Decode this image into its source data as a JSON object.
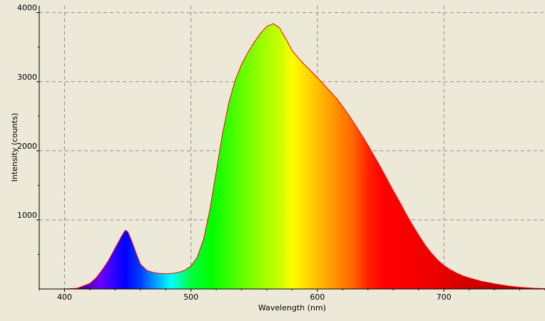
{
  "chart_data": {
    "type": "area",
    "xlabel": "Wavelength (nm)",
    "ylabel": "Intensity (counts)",
    "x_ticks": [
      400,
      500,
      600,
      700
    ],
    "y_ticks": [
      1000,
      2000,
      3000,
      4000
    ],
    "xlim": [
      380,
      780
    ],
    "ylim": [
      0,
      4100
    ],
    "grid": true,
    "fill": "visible-spectrum gradient by wavelength",
    "line_color": "#ff0000",
    "points": [
      [
        380,
        0
      ],
      [
        400,
        0
      ],
      [
        410,
        10
      ],
      [
        420,
        80
      ],
      [
        425,
        160
      ],
      [
        430,
        280
      ],
      [
        435,
        420
      ],
      [
        440,
        590
      ],
      [
        445,
        760
      ],
      [
        448,
        850
      ],
      [
        450,
        830
      ],
      [
        453,
        700
      ],
      [
        457,
        500
      ],
      [
        460,
        360
      ],
      [
        465,
        270
      ],
      [
        470,
        240
      ],
      [
        475,
        225
      ],
      [
        480,
        220
      ],
      [
        485,
        225
      ],
      [
        490,
        240
      ],
      [
        495,
        270
      ],
      [
        500,
        330
      ],
      [
        505,
        460
      ],
      [
        510,
        720
      ],
      [
        515,
        1150
      ],
      [
        520,
        1700
      ],
      [
        525,
        2250
      ],
      [
        530,
        2700
      ],
      [
        535,
        3020
      ],
      [
        540,
        3250
      ],
      [
        545,
        3420
      ],
      [
        550,
        3570
      ],
      [
        555,
        3700
      ],
      [
        560,
        3800
      ],
      [
        565,
        3840
      ],
      [
        570,
        3780
      ],
      [
        575,
        3620
      ],
      [
        580,
        3450
      ],
      [
        585,
        3340
      ],
      [
        590,
        3240
      ],
      [
        595,
        3150
      ],
      [
        600,
        3060
      ],
      [
        605,
        2960
      ],
      [
        610,
        2860
      ],
      [
        615,
        2760
      ],
      [
        620,
        2640
      ],
      [
        625,
        2510
      ],
      [
        630,
        2370
      ],
      [
        635,
        2230
      ],
      [
        640,
        2080
      ],
      [
        645,
        1920
      ],
      [
        650,
        1760
      ],
      [
        655,
        1590
      ],
      [
        660,
        1420
      ],
      [
        665,
        1260
      ],
      [
        670,
        1090
      ],
      [
        675,
        930
      ],
      [
        680,
        780
      ],
      [
        685,
        640
      ],
      [
        690,
        520
      ],
      [
        695,
        420
      ],
      [
        700,
        340
      ],
      [
        705,
        280
      ],
      [
        710,
        230
      ],
      [
        715,
        190
      ],
      [
        720,
        160
      ],
      [
        730,
        110
      ],
      [
        740,
        75
      ],
      [
        750,
        45
      ],
      [
        760,
        25
      ],
      [
        770,
        12
      ],
      [
        780,
        5
      ]
    ]
  }
}
